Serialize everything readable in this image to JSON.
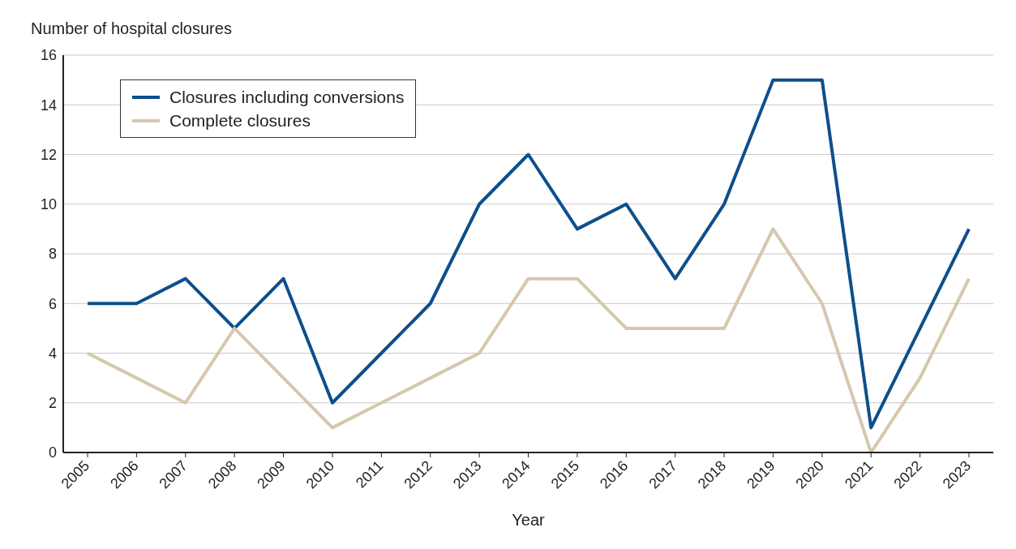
{
  "chart_data": {
    "type": "line",
    "ylabel": "Number of hospital closures",
    "xlabel": "Year",
    "categories": [
      "2005",
      "2006",
      "2007",
      "2008",
      "2009",
      "2010",
      "2011",
      "2012",
      "2013",
      "2014",
      "2015",
      "2016",
      "2017",
      "2018",
      "2019",
      "2020",
      "2021",
      "2022",
      "2023"
    ],
    "series": [
      {
        "name": "Closures including conversions",
        "color": "#0d4f8b",
        "values": [
          6,
          6,
          7,
          5,
          7,
          2,
          4,
          6,
          10,
          12,
          9,
          10,
          7,
          10,
          15,
          15,
          1,
          5,
          9
        ]
      },
      {
        "name": "Complete closures",
        "color": "#d6c7ad",
        "values": [
          4,
          3,
          2,
          5,
          3,
          1,
          2,
          3,
          4,
          7,
          7,
          5,
          5,
          5,
          9,
          6,
          0,
          3,
          7
        ]
      }
    ],
    "ylim": [
      0,
      16
    ],
    "yticks": [
      0,
      2,
      4,
      6,
      8,
      10,
      12,
      14,
      16
    ],
    "grid": "y",
    "legend": "top left",
    "marker": "none",
    "line_style": "solid"
  }
}
